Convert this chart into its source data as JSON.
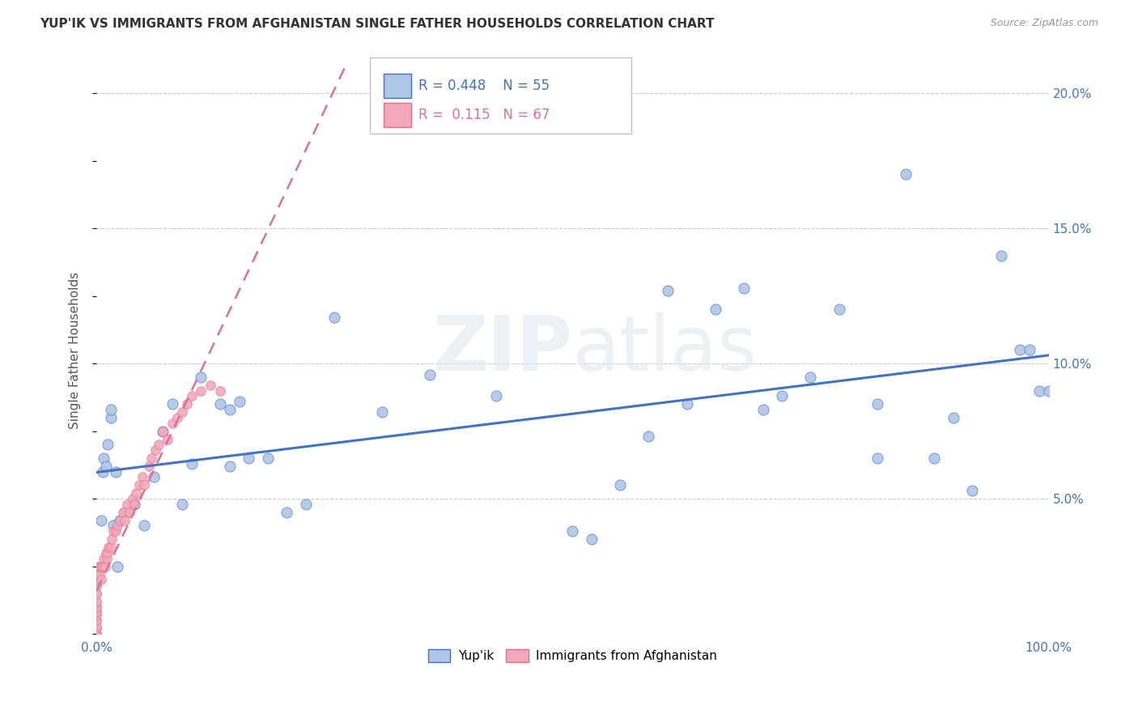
{
  "title": "YUP'IK VS IMMIGRANTS FROM AFGHANISTAN SINGLE FATHER HOUSEHOLDS CORRELATION CHART",
  "source": "Source: ZipAtlas.com",
  "ylabel": "Single Father Households",
  "xlim": [
    0,
    1.0
  ],
  "ylim": [
    0,
    0.21
  ],
  "ytick_vals": [
    0.05,
    0.1,
    0.15,
    0.2
  ],
  "ytick_labels": [
    "5.0%",
    "10.0%",
    "15.0%",
    "20.0%"
  ],
  "xtick_vals": [
    0.0,
    1.0
  ],
  "xtick_labels": [
    "0.0%",
    "100.0%"
  ],
  "color_yupik_fill": "#aec6e8",
  "color_yupik_edge": "#4472c4",
  "color_afghan_fill": "#f4a9b8",
  "color_afghan_edge": "#e07090",
  "color_line_yupik": "#4472c4",
  "color_line_afghan": "#e07090",
  "color_grid": "#cccccc",
  "color_tick": "#4472c4",
  "watermark": "ZIPatlas",
  "legend_r1": "R = 0.448",
  "legend_n1": "N = 55",
  "legend_r2": "R =  0.115",
  "legend_n2": "N = 67",
  "yupik_x": [
    0.005,
    0.007,
    0.008,
    0.01,
    0.012,
    0.015,
    0.015,
    0.018,
    0.02,
    0.022,
    0.025,
    0.03,
    0.04,
    0.05,
    0.06,
    0.07,
    0.08,
    0.09,
    0.1,
    0.11,
    0.13,
    0.14,
    0.14,
    0.15,
    0.16,
    0.18,
    0.2,
    0.22,
    0.25,
    0.3,
    0.35,
    0.42,
    0.5,
    0.52,
    0.55,
    0.58,
    0.6,
    0.62,
    0.65,
    0.68,
    0.7,
    0.72,
    0.75,
    0.78,
    0.82,
    0.82,
    0.85,
    0.88,
    0.9,
    0.92,
    0.95,
    0.97,
    0.98,
    0.99,
    1.0
  ],
  "yupik_y": [
    0.042,
    0.06,
    0.065,
    0.062,
    0.07,
    0.08,
    0.083,
    0.04,
    0.06,
    0.025,
    0.042,
    0.045,
    0.048,
    0.04,
    0.058,
    0.075,
    0.085,
    0.048,
    0.063,
    0.095,
    0.085,
    0.062,
    0.083,
    0.086,
    0.065,
    0.065,
    0.045,
    0.048,
    0.117,
    0.082,
    0.096,
    0.088,
    0.038,
    0.035,
    0.055,
    0.073,
    0.127,
    0.085,
    0.12,
    0.128,
    0.083,
    0.088,
    0.095,
    0.12,
    0.065,
    0.085,
    0.17,
    0.065,
    0.08,
    0.053,
    0.14,
    0.105,
    0.105,
    0.09,
    0.09
  ],
  "afghan_x": [
    0.0,
    0.0,
    0.0,
    0.0,
    0.0,
    0.0,
    0.0,
    0.0,
    0.0,
    0.0,
    0.0,
    0.0,
    0.0,
    0.0,
    0.0,
    0.0,
    0.0,
    0.0,
    0.0,
    0.0,
    0.0,
    0.0,
    0.001,
    0.001,
    0.002,
    0.002,
    0.003,
    0.004,
    0.005,
    0.006,
    0.007,
    0.008,
    0.009,
    0.01,
    0.011,
    0.012,
    0.013,
    0.015,
    0.016,
    0.018,
    0.02,
    0.022,
    0.025,
    0.028,
    0.03,
    0.032,
    0.035,
    0.038,
    0.04,
    0.042,
    0.045,
    0.048,
    0.05,
    0.055,
    0.058,
    0.062,
    0.065,
    0.07,
    0.075,
    0.08,
    0.085,
    0.09,
    0.095,
    0.1,
    0.11,
    0.12,
    0.13
  ],
  "afghan_y": [
    0.0,
    0.0,
    0.0,
    0.0,
    0.002,
    0.003,
    0.005,
    0.005,
    0.007,
    0.008,
    0.008,
    0.008,
    0.01,
    0.01,
    0.01,
    0.012,
    0.012,
    0.015,
    0.015,
    0.018,
    0.018,
    0.02,
    0.02,
    0.022,
    0.022,
    0.025,
    0.022,
    0.025,
    0.02,
    0.025,
    0.025,
    0.028,
    0.025,
    0.03,
    0.028,
    0.03,
    0.032,
    0.032,
    0.035,
    0.038,
    0.038,
    0.04,
    0.042,
    0.045,
    0.042,
    0.048,
    0.045,
    0.05,
    0.048,
    0.052,
    0.055,
    0.058,
    0.055,
    0.062,
    0.065,
    0.068,
    0.07,
    0.075,
    0.072,
    0.078,
    0.08,
    0.082,
    0.085,
    0.088,
    0.09,
    0.092,
    0.09
  ]
}
